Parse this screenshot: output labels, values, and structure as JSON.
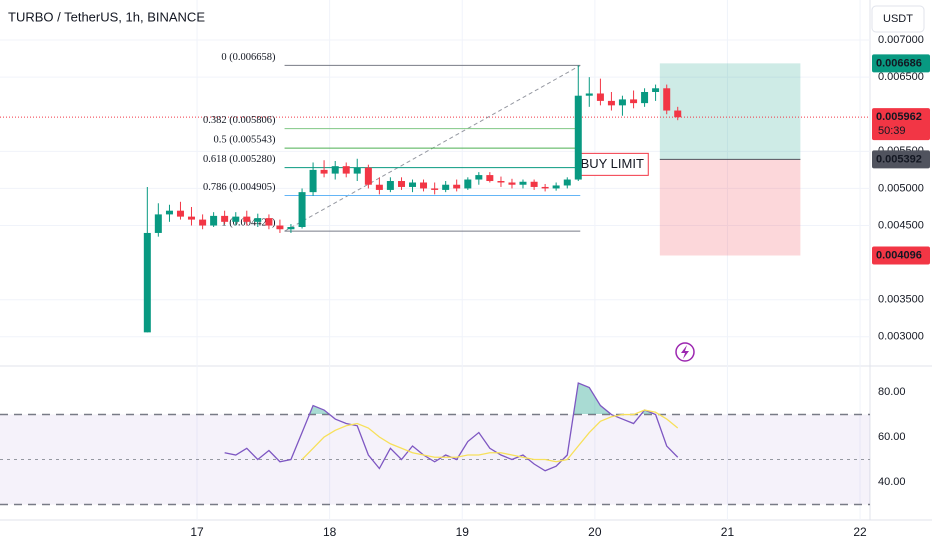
{
  "header": {
    "title": "TURBO / TetherUS, 1h, BINANCE",
    "currency": "USDT"
  },
  "chart_data": [
    {
      "type": "candlestick",
      "x": [
        16.625,
        16.708,
        16.792,
        16.875,
        16.958,
        17.042,
        17.125,
        17.208,
        17.292,
        17.375,
        17.458,
        17.542,
        17.625,
        17.708,
        17.792,
        17.875,
        17.958,
        18.042,
        18.125,
        18.208,
        18.292,
        18.375,
        18.458,
        18.542,
        18.625,
        18.708,
        18.792,
        18.875,
        18.958,
        19.042,
        19.125,
        19.208,
        19.292,
        19.375,
        19.458,
        19.542,
        19.625,
        19.708,
        19.792,
        19.875,
        19.958,
        20.042,
        20.125,
        20.208,
        20.292,
        20.375,
        20.458,
        20.542,
        20.625
      ],
      "open": [
        0.00306,
        0.0044,
        0.00465,
        0.0047,
        0.00462,
        0.00458,
        0.0045,
        0.00463,
        0.00455,
        0.00462,
        0.00455,
        0.0046,
        0.0045,
        0.00445,
        0.00448,
        0.00495,
        0.00525,
        0.0052,
        0.0053,
        0.0052,
        0.00528,
        0.00505,
        0.00498,
        0.0051,
        0.00502,
        0.00508,
        0.005,
        0.00498,
        0.00505,
        0.005,
        0.00512,
        0.00518,
        0.0051,
        0.00508,
        0.00505,
        0.00509,
        0.00502,
        0.005,
        0.00504,
        0.00512,
        0.00625,
        0.00628,
        0.00618,
        0.00612,
        0.0062,
        0.00615,
        0.0063,
        0.00635,
        0.00605
      ],
      "high": [
        0.00502,
        0.0048,
        0.00478,
        0.00482,
        0.00475,
        0.00465,
        0.00468,
        0.0047,
        0.00468,
        0.0047,
        0.00466,
        0.00465,
        0.00458,
        0.00452,
        0.005,
        0.00535,
        0.00538,
        0.00537,
        0.00535,
        0.0054,
        0.00532,
        0.00515,
        0.00515,
        0.00515,
        0.00512,
        0.00512,
        0.00508,
        0.0051,
        0.00512,
        0.00515,
        0.00522,
        0.00522,
        0.00516,
        0.00513,
        0.00512,
        0.00512,
        0.00506,
        0.00508,
        0.00515,
        0.00666,
        0.0065,
        0.00648,
        0.0063,
        0.00625,
        0.00632,
        0.00635,
        0.0064,
        0.0064,
        0.0061
      ],
      "low": [
        0.00306,
        0.00435,
        0.00455,
        0.00458,
        0.0045,
        0.00445,
        0.00448,
        0.00452,
        0.0045,
        0.0045,
        0.00448,
        0.00445,
        0.0044,
        0.0044,
        0.00446,
        0.0049,
        0.00515,
        0.00512,
        0.00515,
        0.0051,
        0.005,
        0.00492,
        0.00495,
        0.00498,
        0.00495,
        0.00496,
        0.00492,
        0.00495,
        0.00496,
        0.00498,
        0.00505,
        0.00508,
        0.00502,
        0.005,
        0.005,
        0.00498,
        0.00496,
        0.00497,
        0.005,
        0.0051,
        0.0061,
        0.00612,
        0.00605,
        0.00598,
        0.00608,
        0.0061,
        0.00618,
        0.006,
        0.00592
      ],
      "close": [
        0.0044,
        0.00465,
        0.0047,
        0.00462,
        0.00458,
        0.0045,
        0.00463,
        0.00455,
        0.00462,
        0.00455,
        0.0046,
        0.0045,
        0.00445,
        0.00448,
        0.00495,
        0.00525,
        0.0052,
        0.0053,
        0.0052,
        0.00528,
        0.00505,
        0.00498,
        0.0051,
        0.00502,
        0.00508,
        0.005,
        0.00498,
        0.00505,
        0.005,
        0.00512,
        0.00518,
        0.0051,
        0.00508,
        0.00505,
        0.00509,
        0.00502,
        0.005,
        0.00504,
        0.00512,
        0.00625,
        0.00628,
        0.00618,
        0.00612,
        0.0062,
        0.00615,
        0.0063,
        0.00635,
        0.00605,
        0.00596
      ],
      "up_color": "#089981",
      "down_color": "#f23645",
      "xlim": [
        15.514,
        22.075
      ],
      "xticks": [
        17,
        18,
        19,
        20,
        21,
        22
      ],
      "ylim": [
        0.00262,
        0.00754
      ],
      "yticks": [
        {
          "value": 0.007,
          "label": "0.007000"
        },
        {
          "value": 0.0065,
          "label": "0.006500"
        },
        {
          "value": 0.0055,
          "label": "0.005500"
        },
        {
          "value": 0.005,
          "label": "0.005000"
        },
        {
          "value": 0.0045,
          "label": "0.004500"
        },
        {
          "value": 0.0035,
          "label": "0.003500"
        },
        {
          "value": 0.003,
          "label": "0.003000"
        }
      ],
      "grid": true,
      "fib": {
        "x_start": 17.66,
        "x_end": 19.89,
        "levels": [
          {
            "label": "0 (0.006658)",
            "price": 0.006658,
            "color": "#787b86"
          },
          {
            "label": "0.382 (0.005806)",
            "price": 0.005806,
            "color": "#81c784"
          },
          {
            "label": "0.5 (0.005543)",
            "price": 0.005543,
            "color": "#4caf50"
          },
          {
            "label": "0.618 (0.005280)",
            "price": 0.00528,
            "color": "#089981"
          },
          {
            "label": "0.786 (0.004905)",
            "price": 0.004905,
            "color": "#64b5f6"
          },
          {
            "label": "1 (0.004424)",
            "price": 0.004424,
            "color": "#787b86"
          }
        ]
      },
      "position": {
        "x_start": 20.49,
        "x_end": 21.55,
        "entry": 0.005392,
        "target": 0.006686,
        "stop": 0.004096,
        "target_color": "#089981",
        "stop_color": "#f23645",
        "entry_color": "#50535e"
      },
      "last_price": 0.005962,
      "countdown": "50:39",
      "annotation": "BUY LIMIT"
    },
    {
      "type": "line",
      "x": [
        16.625,
        16.708,
        16.792,
        16.875,
        16.958,
        17.042,
        17.125,
        17.208,
        17.292,
        17.375,
        17.458,
        17.542,
        17.625,
        17.708,
        17.792,
        17.875,
        17.958,
        18.042,
        18.125,
        18.208,
        18.292,
        18.375,
        18.458,
        18.542,
        18.625,
        18.708,
        18.792,
        18.875,
        18.958,
        19.042,
        19.125,
        19.208,
        19.292,
        19.375,
        19.458,
        19.542,
        19.625,
        19.708,
        19.792,
        19.875,
        19.958,
        20.042,
        20.125,
        20.208,
        20.292,
        20.375,
        20.458,
        20.542,
        20.625
      ],
      "series": [
        {
          "color": "#7e57c2",
          "values": [
            null,
            null,
            null,
            null,
            null,
            null,
            null,
            53,
            52,
            55,
            50,
            54,
            49,
            50,
            62,
            74,
            72,
            68,
            66,
            65,
            52,
            46,
            55,
            50,
            56,
            52,
            49,
            52,
            50,
            58,
            62,
            55,
            52,
            50,
            52,
            48,
            45,
            47,
            52,
            84,
            82,
            74,
            70,
            68,
            66,
            72,
            70,
            56,
            51
          ]
        },
        {
          "color": "#f7e05a",
          "values": [
            null,
            null,
            null,
            null,
            null,
            null,
            null,
            null,
            null,
            null,
            null,
            null,
            null,
            null,
            50,
            55,
            60,
            63,
            65,
            66,
            64,
            60,
            57,
            55,
            53,
            52,
            51,
            51,
            51,
            52,
            52,
            53,
            53,
            52,
            51,
            50,
            50,
            49,
            50,
            56,
            62,
            67,
            69,
            70,
            70,
            72,
            71,
            68,
            64
          ]
        }
      ],
      "ylim": [
        23.1,
        90.7
      ],
      "yticks": [
        {
          "value": 80,
          "label": "80.00"
        },
        {
          "value": 60,
          "label": "60.00"
        },
        {
          "value": 40,
          "label": "40.00"
        }
      ],
      "bands": {
        "upper": 70,
        "middle": 50,
        "lower": 30
      }
    }
  ]
}
